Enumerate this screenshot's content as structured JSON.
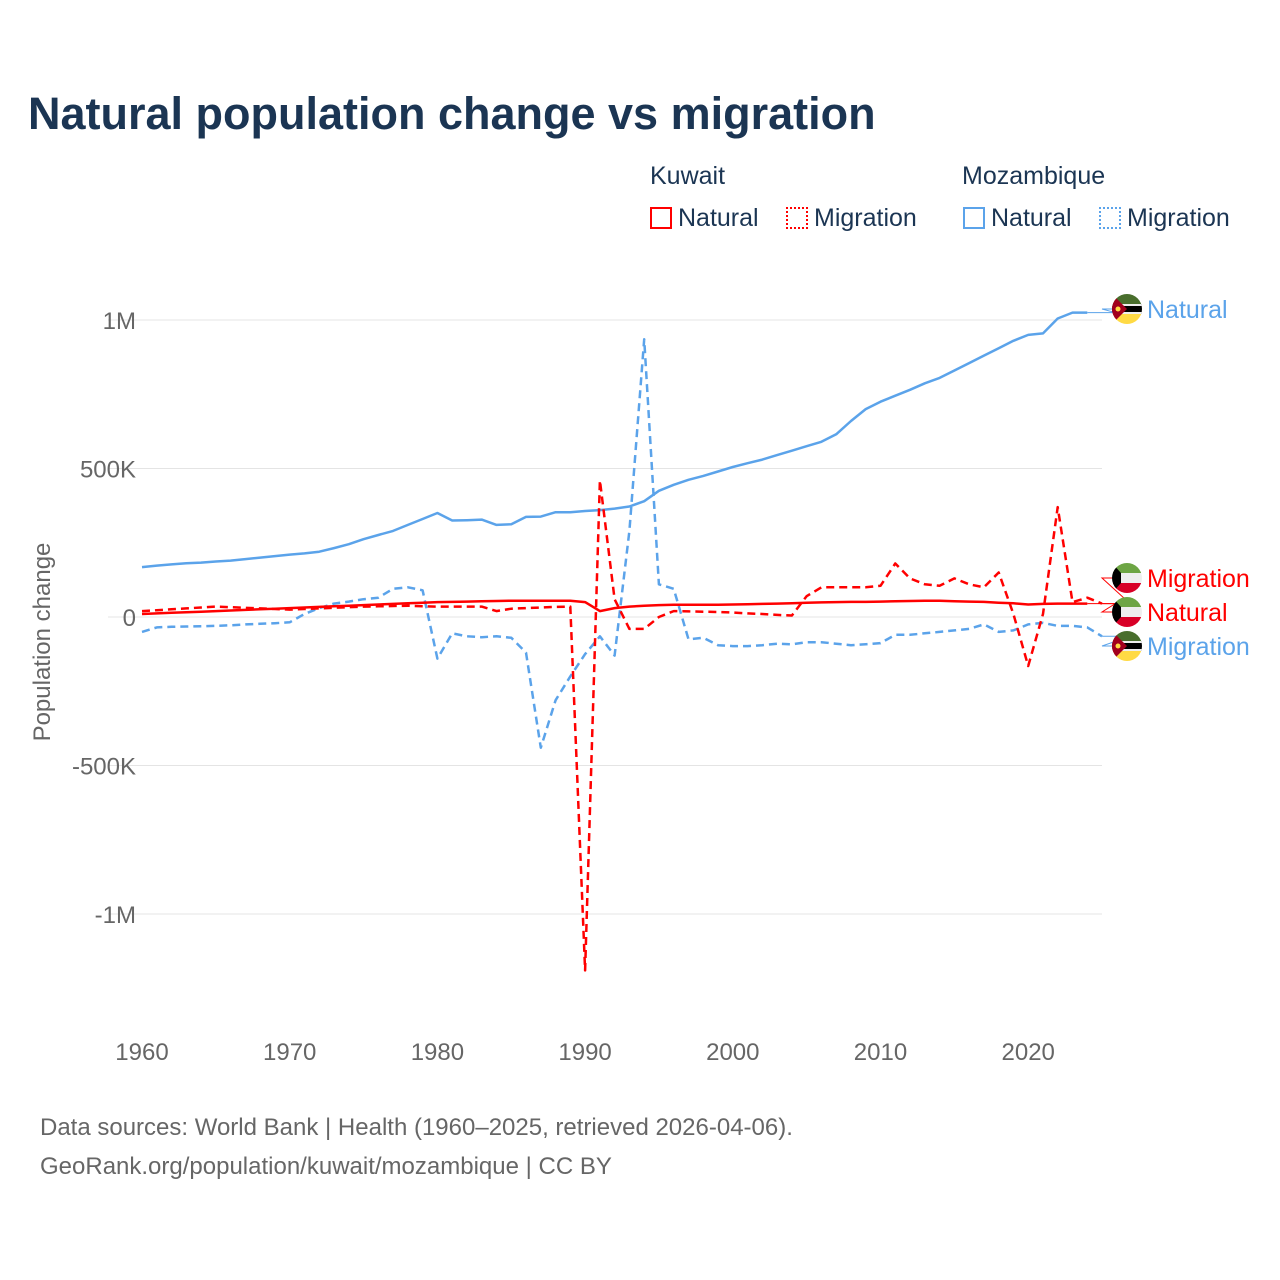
{
  "chart_data": {
    "type": "line",
    "title": "Natural population change vs migration",
    "xlabel": "",
    "ylabel": "Population change",
    "xlim": [
      1960,
      2025
    ],
    "ylim": [
      -1300000,
      1200000
    ],
    "x_ticks": [
      "1960",
      "1970",
      "1980",
      "1990",
      "2000",
      "2010",
      "2020"
    ],
    "y_ticks": [
      {
        "v": 1000000,
        "label": "1M"
      },
      {
        "v": 500000,
        "label": "500K"
      },
      {
        "v": 0,
        "label": "0"
      },
      {
        "v": -500000,
        "label": "-500K"
      },
      {
        "v": -1000000,
        "label": "-1M"
      }
    ],
    "grid": true,
    "legend": {
      "groups": [
        {
          "name": "Kuwait",
          "items": [
            "Natural",
            "Migration"
          ]
        },
        {
          "name": "Mozambique",
          "items": [
            "Natural",
            "Migration"
          ]
        }
      ],
      "placement": "top-right"
    },
    "series": [
      {
        "country": "Mozambique",
        "name": "Natural",
        "color": "#5ba3ea",
        "dashed": false,
        "start": 1960,
        "values": [
          168,
          173,
          177,
          181,
          183,
          187,
          190,
          195,
          200,
          205,
          210,
          214,
          220,
          232,
          245,
          262,
          276,
          290,
          310,
          330,
          350,
          325,
          326,
          328,
          310,
          312,
          337,
          338,
          353,
          353,
          357,
          360,
          365,
          372,
          390,
          425,
          445,
          462,
          475,
          490,
          505,
          518,
          530,
          545,
          560,
          575,
          590,
          615,
          660,
          700,
          725,
          745,
          765,
          787,
          805,
          830,
          855,
          880,
          905,
          930,
          950,
          955,
          1005,
          1025,
          1025
        ]
      },
      {
        "country": "Mozambique",
        "name": "Migration",
        "color": "#5ba3ea",
        "dashed": true,
        "start": 1960,
        "values": [
          -50,
          -35,
          -33,
          -32,
          -31,
          -30,
          -28,
          -25,
          -23,
          -21,
          -18,
          10,
          30,
          45,
          52,
          60,
          65,
          95,
          100,
          90,
          -140,
          -55,
          -65,
          -68,
          -65,
          -70,
          -120,
          -440,
          -280,
          -200,
          -125,
          -65,
          -130,
          290,
          935,
          110,
          95,
          -75,
          -70,
          -95,
          -98,
          -98,
          -95,
          -90,
          -92,
          -85,
          -85,
          -90,
          -95,
          -92,
          -88,
          -60,
          -60,
          -55,
          -50,
          -45,
          -40,
          -25,
          -50,
          -45,
          -25,
          -20,
          -30,
          -30,
          -35,
          -65
        ]
      },
      {
        "country": "Kuwait",
        "name": "Natural",
        "color": "#ff0000",
        "dashed": false,
        "start": 1960,
        "values": [
          10,
          12,
          14,
          16,
          18,
          20,
          22,
          24,
          26,
          28,
          30,
          32,
          34,
          36,
          38,
          40,
          42,
          44,
          46,
          48,
          50,
          51,
          52,
          53,
          54,
          55,
          55,
          55,
          55,
          55,
          50,
          20,
          30,
          35,
          38,
          40,
          41,
          41,
          41,
          41,
          42,
          43,
          44,
          45,
          46,
          48,
          49,
          50,
          51,
          51,
          52,
          53,
          54,
          55,
          55,
          53,
          52,
          51,
          48,
          46,
          42,
          44,
          45,
          45,
          45
        ]
      },
      {
        "country": "Kuwait",
        "name": "Migration",
        "color": "#ff0000",
        "dashed": true,
        "start": 1960,
        "values": [
          20,
          23,
          26,
          29,
          32,
          35,
          33,
          31,
          29,
          27,
          25,
          27,
          29,
          31,
          33,
          35,
          36,
          37,
          38,
          36,
          35,
          35,
          35,
          35,
          20,
          28,
          30,
          32,
          34,
          35,
          -1190,
          460,
          60,
          -40,
          -40,
          0,
          20,
          19,
          18,
          17,
          15,
          12,
          10,
          7,
          5,
          70,
          100,
          100,
          100,
          100,
          105,
          180,
          130,
          110,
          105,
          130,
          110,
          100,
          150,
          10,
          -165,
          10,
          370,
          50,
          65,
          45
        ]
      }
    ],
    "end_labels": [
      {
        "country": "Mozambique",
        "label": "Natural",
        "color": "#5ba3ea"
      },
      {
        "country": "Kuwait",
        "label": "Migration",
        "color": "#ff0000"
      },
      {
        "country": "Kuwait",
        "label": "Natural",
        "color": "#ff0000"
      },
      {
        "country": "Mozambique",
        "label": "Migration",
        "color": "#5ba3ea"
      }
    ],
    "units_note": "values in thousands"
  },
  "source": {
    "line1": "Data sources: World Bank | Health (1960–2025, retrieved 2026-04-06).",
    "line2": "GeoRank.org/population/kuwait/mozambique | CC BY"
  }
}
